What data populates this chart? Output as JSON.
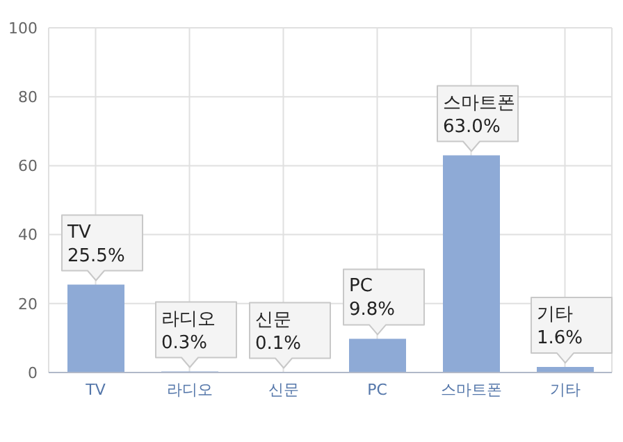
{
  "chart_data": {
    "type": "bar",
    "categories": [
      "TV",
      "라디오",
      "신문",
      "PC",
      "스마트폰",
      "기타"
    ],
    "values": [
      25.5,
      0.3,
      0.1,
      9.8,
      63.0,
      1.6
    ],
    "value_labels": [
      "25.5%",
      "0.3%",
      "0.1%",
      "9.8%",
      "63.0%",
      "1.6%"
    ],
    "color": "#8eaad6",
    "ylim": [
      0,
      100
    ],
    "yticks": [
      0,
      20,
      40,
      60,
      80,
      100
    ],
    "grid": true
  }
}
